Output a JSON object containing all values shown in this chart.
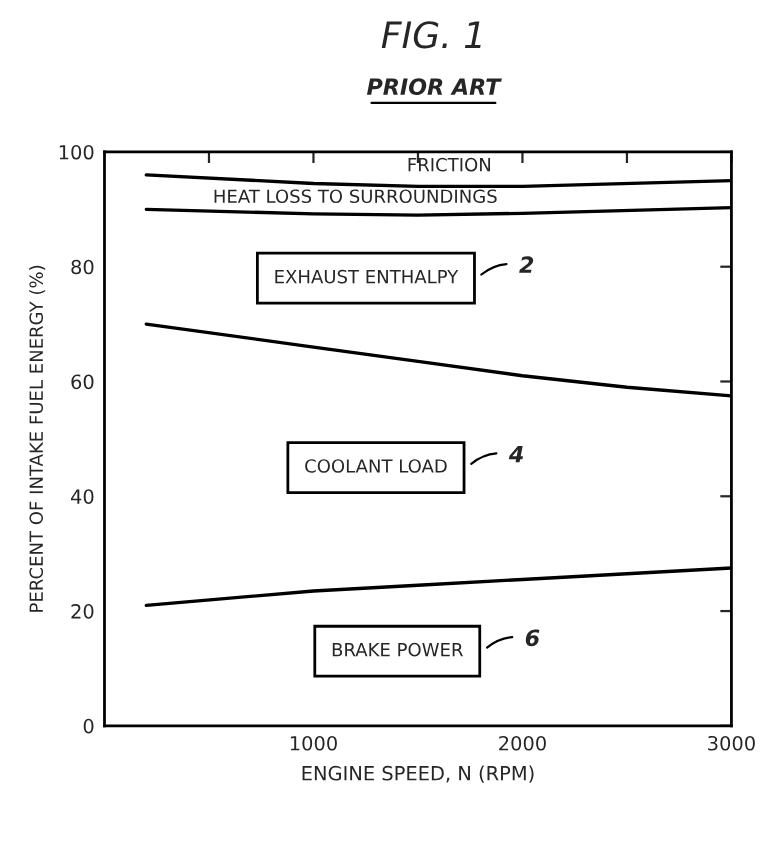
{
  "chart_data": {
    "type": "line",
    "title": "FIG. 1",
    "subtitle": "PRIOR ART",
    "xlabel": "ENGINE SPEED, N (RPM)",
    "ylabel": "PERCENT OF INTAKE FUEL ENERGY (%)",
    "xlim": [
      0,
      3000
    ],
    "ylim": [
      0,
      100
    ],
    "xticks": [
      {
        "value": 500,
        "label": null
      },
      1000,
      {
        "value": 1500,
        "label": null
      },
      2000,
      {
        "value": 2500,
        "label": null
      },
      3000
    ],
    "yticks": [
      0,
      20,
      40,
      60,
      80,
      100
    ],
    "series": [
      {
        "color": "#000000",
        "x": [
          200,
          1000,
          1500,
          2000,
          3000
        ],
        "values": [
          96,
          94.5,
          94,
          94,
          95
        ]
      },
      {
        "color": "#000000",
        "x": [
          200,
          1000,
          1500,
          2000,
          3000
        ],
        "values": [
          90,
          89.2,
          89,
          89.3,
          90.3
        ]
      },
      {
        "color": "#000000",
        "x": [
          200,
          1000,
          1500,
          2000,
          2500,
          3000
        ],
        "values": [
          70,
          66,
          63.5,
          61,
          59,
          57.5
        ]
      },
      {
        "color": "#000000",
        "x": [
          200,
          1000,
          1500,
          2000,
          2500,
          3000
        ],
        "values": [
          21,
          23.5,
          24.5,
          25.5,
          26.5,
          27.5
        ]
      }
    ],
    "annotations": [
      "FRICTION",
      "HEAT LOSS TO SURROUNDINGS",
      "EXHAUST ENTHALPY",
      "COOLANT LOAD",
      "BRAKE POWER",
      "2",
      "4",
      "6"
    ],
    "grid": false,
    "legend": false,
    "line_style": "solid",
    "marker": "none"
  }
}
